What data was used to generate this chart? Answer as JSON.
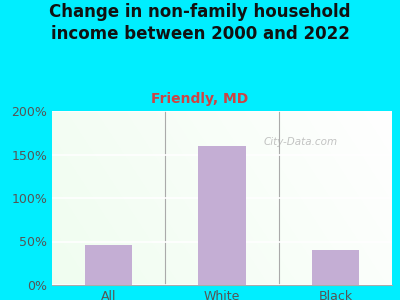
{
  "title": "Change in non-family household\nincome between 2000 and 2022",
  "subtitle": "Friendly, MD",
  "categories": [
    "All",
    "White",
    "Black"
  ],
  "values": [
    46,
    160,
    40
  ],
  "bar_color": "#c4aed4",
  "title_fontsize": 12,
  "subtitle_fontsize": 10,
  "subtitle_color": "#cc4444",
  "title_color": "#111111",
  "ylabel_ticks": [
    "0%",
    "50%",
    "100%",
    "150%",
    "200%"
  ],
  "ytick_values": [
    0,
    50,
    100,
    150,
    200
  ],
  "ylim": [
    0,
    200
  ],
  "bg_outer": "#00eeff",
  "watermark": "City-Data.com",
  "tick_color": "#555555",
  "xtick_fontsize": 9,
  "ytick_fontsize": 9
}
